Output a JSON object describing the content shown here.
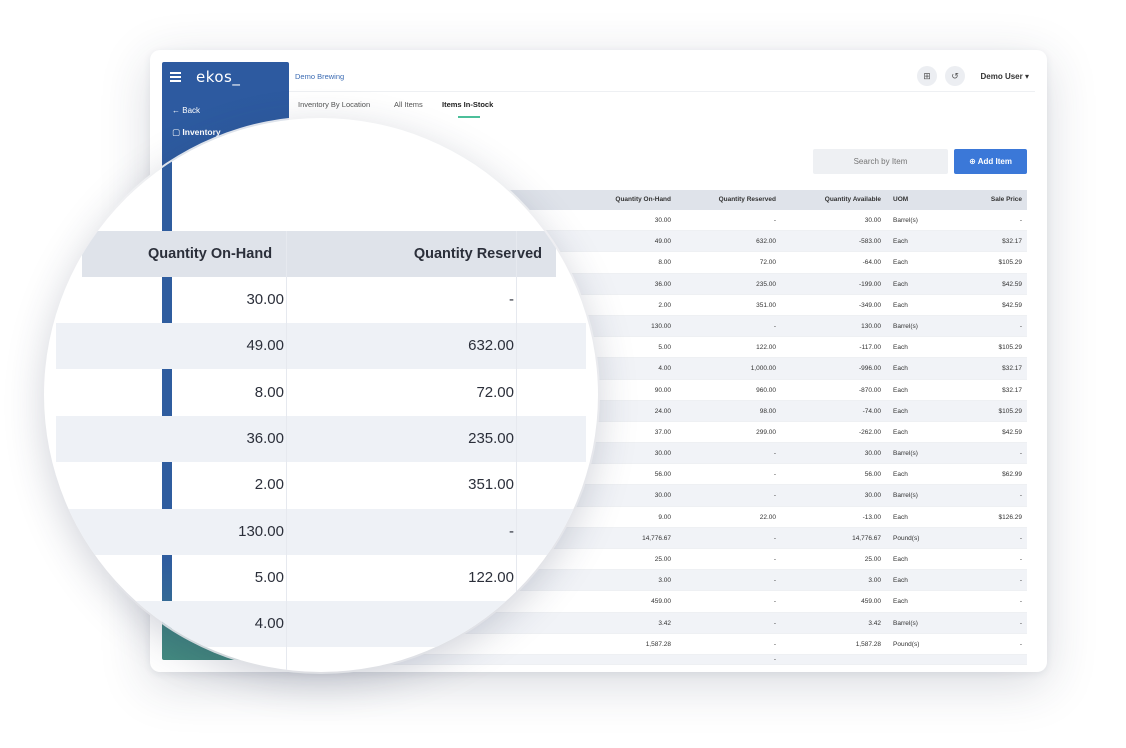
{
  "app": {
    "logo": "ekos_",
    "back_label": "Back",
    "section_label": "Inventory",
    "brand": "Demo Brewing",
    "user": "Demo User"
  },
  "icons": {
    "menu": "hamburger-icon",
    "back": "arrow-left-icon",
    "inventory": "clipboard-icon",
    "scan": "qr-code-icon",
    "history": "history-icon",
    "add": "plus-circle-icon",
    "user_menu": "chevron-down-icon"
  },
  "tabs": [
    {
      "label": "Inventory By Location"
    },
    {
      "label": "All Items"
    },
    {
      "label": "Items In-Stock"
    }
  ],
  "search": {
    "placeholder": "Search by Item"
  },
  "add_button": {
    "label": "Add Item"
  },
  "colors": {
    "accent": "#3b78d8",
    "sidebar": "#2f5d9f",
    "tab_underline": "#4cbf9a"
  },
  "table": {
    "columns": [
      "Quantity On-Hand",
      "Quantity Reserved",
      "Quantity Available",
      "UOM",
      "Sale Price"
    ],
    "rows": [
      [
        "30.00",
        "-",
        "30.00",
        "Barrel(s)",
        "-"
      ],
      [
        "49.00",
        "632.00",
        "-583.00",
        "Each",
        "$32.17"
      ],
      [
        "8.00",
        "72.00",
        "-64.00",
        "Each",
        "$105.29"
      ],
      [
        "36.00",
        "235.00",
        "-199.00",
        "Each",
        "$42.59"
      ],
      [
        "2.00",
        "351.00",
        "-349.00",
        "Each",
        "$42.59"
      ],
      [
        "130.00",
        "-",
        "130.00",
        "Barrel(s)",
        "-"
      ],
      [
        "5.00",
        "122.00",
        "-117.00",
        "Each",
        "$105.29"
      ],
      [
        "4.00",
        "1,000.00",
        "-996.00",
        "Each",
        "$32.17"
      ],
      [
        "90.00",
        "960.00",
        "-870.00",
        "Each",
        "$32.17"
      ],
      [
        "24.00",
        "98.00",
        "-74.00",
        "Each",
        "$105.29"
      ],
      [
        "37.00",
        "299.00",
        "-262.00",
        "Each",
        "$42.59"
      ],
      [
        "30.00",
        "-",
        "30.00",
        "Barrel(s)",
        "-"
      ],
      [
        "56.00",
        "-",
        "56.00",
        "Each",
        "$62.99"
      ],
      [
        "30.00",
        "-",
        "30.00",
        "Barrel(s)",
        "-"
      ],
      [
        "9.00",
        "22.00",
        "-13.00",
        "Each",
        "$126.29"
      ],
      [
        "14,776.67",
        "-",
        "14,776.67",
        "Pound(s)",
        "-"
      ],
      [
        "25.00",
        "-",
        "25.00",
        "Each",
        "-"
      ],
      [
        "3.00",
        "-",
        "3.00",
        "Each",
        "-"
      ],
      [
        "459.00",
        "-",
        "459.00",
        "Each",
        "-"
      ],
      [
        "3.42",
        "-",
        "3.42",
        "Barrel(s)",
        "-"
      ],
      [
        "1,587.28",
        "-",
        "1,587.28",
        "Pound(s)",
        "-"
      ]
    ],
    "partial_row": {
      "reserved": "-"
    }
  },
  "magnifier": {
    "columns": [
      "Quantity On-Hand",
      "Quantity Reserved"
    ],
    "rows": [
      [
        "30.00",
        "-"
      ],
      [
        "49.00",
        "632.00"
      ],
      [
        "8.00",
        "72.00"
      ],
      [
        "36.00",
        "235.00"
      ],
      [
        "2.00",
        "351.00"
      ],
      [
        "130.00",
        "-"
      ],
      [
        "5.00",
        "122.00"
      ],
      [
        "4.00",
        "1,0"
      ]
    ]
  }
}
